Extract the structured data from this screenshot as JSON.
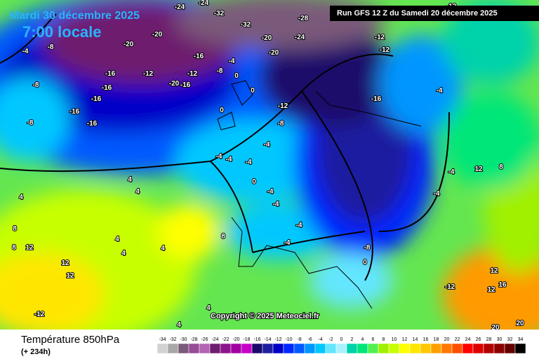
{
  "header": {
    "date": "Mardi 30 décembre 2025",
    "time": "7:00 locale",
    "run": "Run GFS 12 Z du Samedi 20 décembre 2025"
  },
  "copyright": "Copyright © 2025 Meteociel.fr",
  "footer": {
    "title": "Température 850hPa",
    "lead": "(+ 234h)"
  },
  "scale": [
    {
      "value": -34,
      "color": "#d2d2d2"
    },
    {
      "value": -32,
      "color": "#a8a8a8"
    },
    {
      "value": -30,
      "color": "#7a5a7a"
    },
    {
      "value": -28,
      "color": "#964c96"
    },
    {
      "value": -26,
      "color": "#b464b4"
    },
    {
      "value": -24,
      "color": "#6e1e6e"
    },
    {
      "value": -22,
      "color": "#8c148c"
    },
    {
      "value": -20,
      "color": "#a000a0"
    },
    {
      "value": -18,
      "color": "#c800c8"
    },
    {
      "value": -16,
      "color": "#1a0a6a"
    },
    {
      "value": -14,
      "color": "#1e1ea0"
    },
    {
      "value": -12,
      "color": "#0000c8"
    },
    {
      "value": -10,
      "color": "#0028ff"
    },
    {
      "value": -8,
      "color": "#005aff"
    },
    {
      "value": -6,
      "color": "#0096ff"
    },
    {
      "value": -4,
      "color": "#00c8ff"
    },
    {
      "value": -2,
      "color": "#64e6ff"
    },
    {
      "value": 0,
      "color": "#aaf0ff"
    },
    {
      "value": 2,
      "color": "#00d2aa"
    },
    {
      "value": 4,
      "color": "#00e678"
    },
    {
      "value": 6,
      "color": "#50f050"
    },
    {
      "value": 8,
      "color": "#a0f000"
    },
    {
      "value": 10,
      "color": "#c8ff00"
    },
    {
      "value": 12,
      "color": "#ffff00"
    },
    {
      "value": 14,
      "color": "#ffe600"
    },
    {
      "value": 16,
      "color": "#ffc800"
    },
    {
      "value": 18,
      "color": "#ffa000"
    },
    {
      "value": 20,
      "color": "#ff7800"
    },
    {
      "value": 22,
      "color": "#ff5000"
    },
    {
      "value": 24,
      "color": "#ff0000"
    },
    {
      "value": 26,
      "color": "#dc0000"
    },
    {
      "value": 28,
      "color": "#b40000"
    },
    {
      "value": 30,
      "color": "#8c0000"
    },
    {
      "value": 32,
      "color": "#640000"
    },
    {
      "value": 34,
      "color": "#000000"
    }
  ],
  "map_labels": [
    -24,
    -24,
    -32,
    -32,
    -28,
    -12,
    -20,
    -20,
    -8,
    -4,
    -20,
    -24,
    -20,
    -12,
    -12,
    -16,
    -16,
    -12,
    -20,
    -16,
    -12,
    -8,
    -16,
    -16,
    -16,
    -8,
    -16,
    -8,
    -4,
    0,
    0,
    -12,
    -8,
    -16,
    -4,
    0,
    -4,
    -4,
    -4,
    -4,
    0,
    -4,
    -4,
    -4,
    -4,
    -8,
    0,
    -4,
    -4,
    4,
    4,
    4,
    8,
    12,
    8,
    12,
    12,
    4,
    4,
    4,
    8,
    4,
    -12,
    12,
    8,
    12,
    16,
    12,
    -12,
    20,
    20,
    4
  ]
}
